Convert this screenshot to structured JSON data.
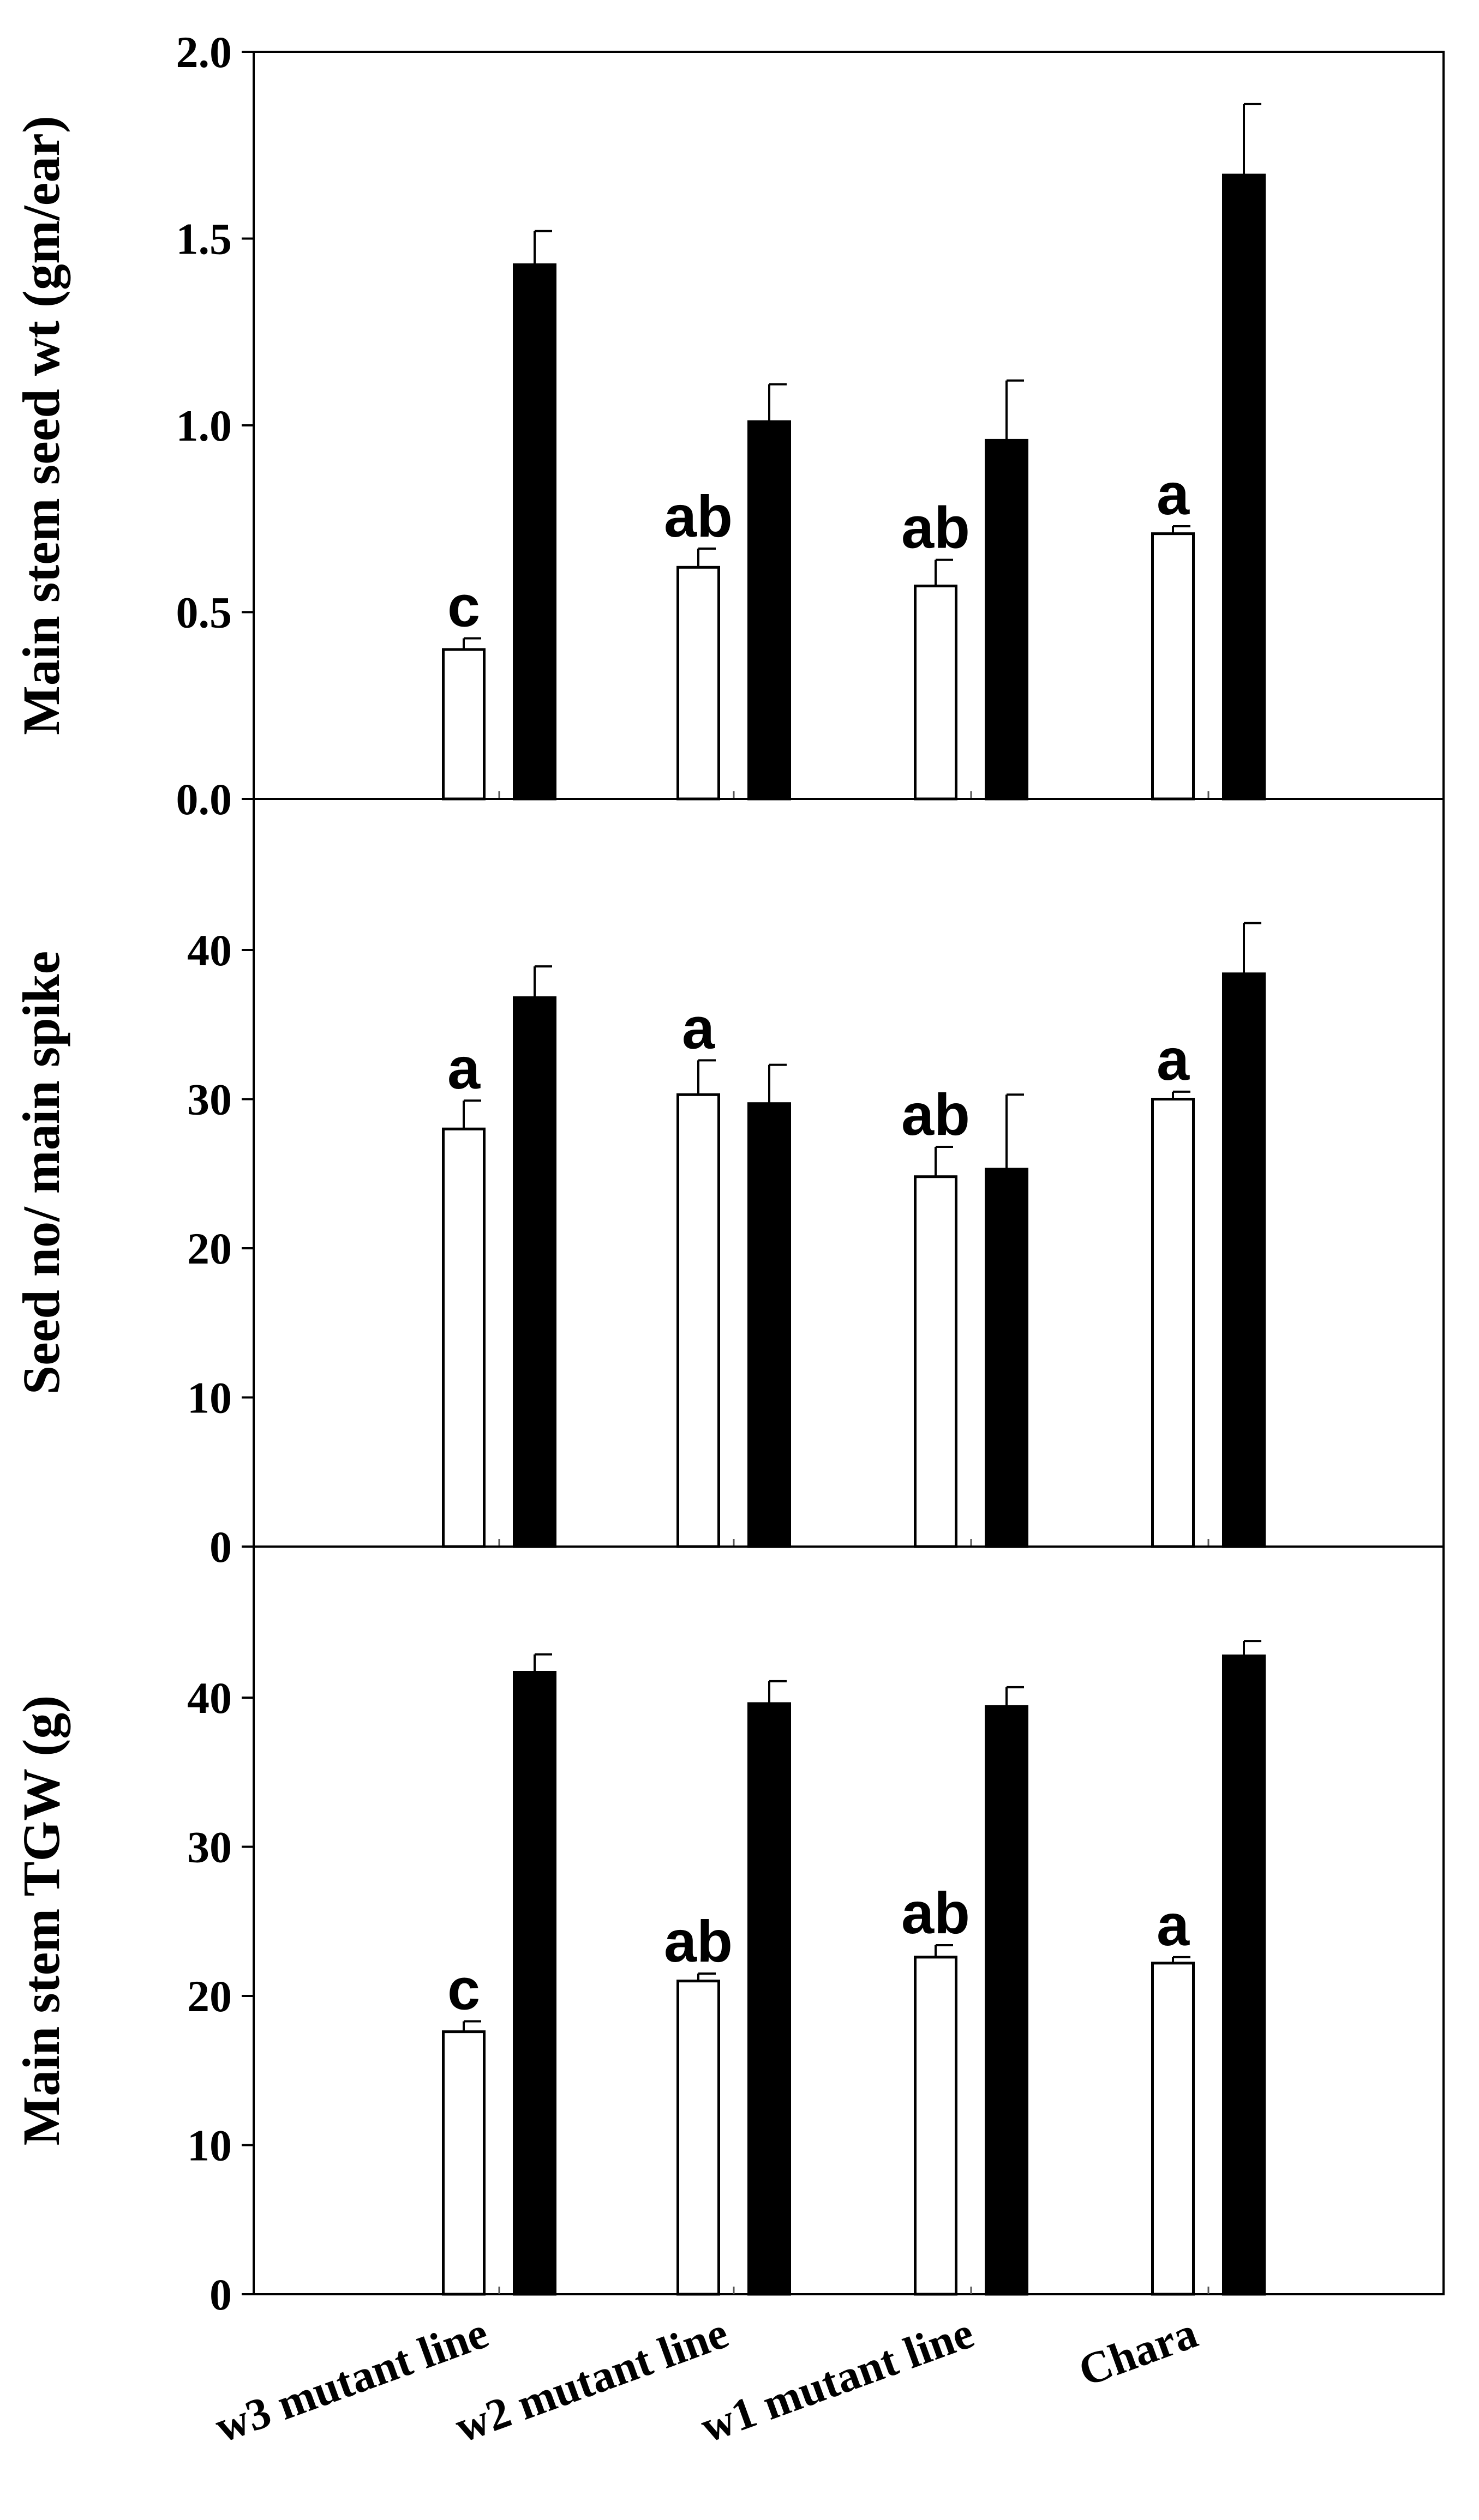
{
  "chart_data": [
    {
      "type": "bar",
      "ylabel": "Main stem seed wt (gm/ear)",
      "ylim": [
        0,
        2.0
      ],
      "yticks": [
        0.0,
        0.5,
        1.0,
        1.5,
        2.0
      ],
      "ytick_labels": [
        "0.0",
        "0.5",
        "1.0",
        "1.5",
        "2.0"
      ],
      "categories": [
        "w3 mutant line",
        "w2 mutant line",
        "w1 mutant line",
        "Chara"
      ],
      "series": [
        {
          "name": "open",
          "color": "#ffffff",
          "values": [
            0.4,
            0.62,
            0.57,
            0.71
          ],
          "errors": [
            0.03,
            0.05,
            0.07,
            0.02
          ],
          "labels": [
            "c",
            "ab",
            "ab",
            "a"
          ]
        },
        {
          "name": "filled",
          "color": "#000000",
          "values": [
            1.43,
            1.01,
            0.96,
            1.67
          ],
          "errors": [
            0.09,
            0.1,
            0.16,
            0.19
          ]
        }
      ]
    },
    {
      "type": "bar",
      "ylabel": "Seed no/ main spike",
      "ylim": [
        0,
        50
      ],
      "yticks": [
        0,
        10,
        20,
        30,
        40
      ],
      "ytick_labels": [
        "0",
        "10",
        "20",
        "30",
        "40"
      ],
      "categories": [
        "w3 mutant line",
        "w2 mutant line",
        "w1 mutant line",
        "Chara"
      ],
      "series": [
        {
          "name": "open",
          "color": "#ffffff",
          "values": [
            28.0,
            30.3,
            24.8,
            30.0
          ],
          "errors": [
            1.9,
            2.3,
            2.0,
            0.5
          ],
          "labels": [
            "a",
            "a",
            "ab",
            "a"
          ]
        },
        {
          "name": "filled",
          "color": "#000000",
          "values": [
            36.8,
            29.7,
            25.3,
            38.4
          ],
          "errors": [
            2.1,
            2.6,
            5.0,
            3.4
          ]
        }
      ]
    },
    {
      "type": "bar",
      "ylabel": "Main stem TGW (g)",
      "ylim": [
        0,
        50
      ],
      "yticks": [
        0,
        10,
        20,
        30,
        40
      ],
      "ytick_labels": [
        "0",
        "10",
        "20",
        "30",
        "40"
      ],
      "categories": [
        "w3 mutant line",
        "w2 mutant line",
        "w1 mutant line",
        "Chara"
      ],
      "series": [
        {
          "name": "open",
          "color": "#ffffff",
          "values": [
            17.6,
            21.0,
            22.6,
            22.2
          ],
          "errors": [
            0.7,
            0.5,
            0.8,
            0.4
          ],
          "labels": [
            "c",
            "ab",
            "ab",
            "a"
          ]
        },
        {
          "name": "filled",
          "color": "#000000",
          "values": [
            41.7,
            39.6,
            39.4,
            42.8
          ],
          "errors": [
            1.2,
            1.5,
            1.3,
            1.0
          ]
        }
      ]
    }
  ]
}
